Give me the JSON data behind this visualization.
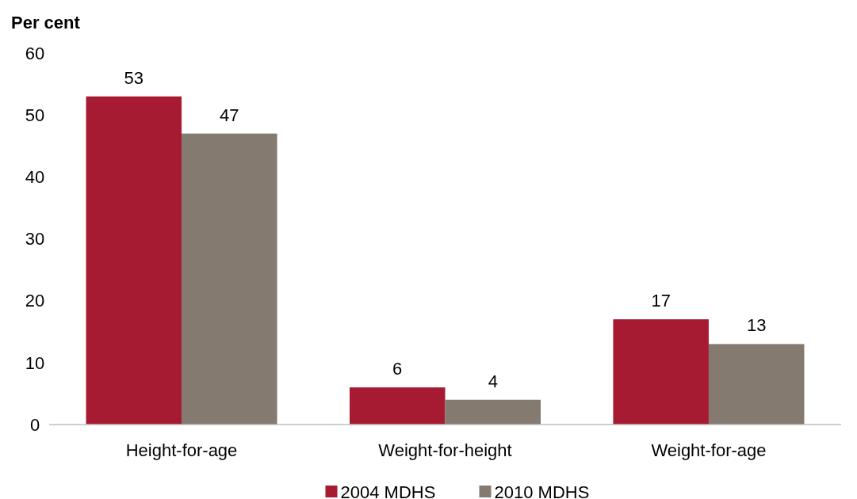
{
  "chart_data": {
    "type": "bar",
    "ylabel": "Per cent",
    "categories": [
      "Height-for-age",
      "Weight-for-height",
      "Weight-for-age"
    ],
    "series": [
      {
        "name": "2004 MDHS",
        "color": "#a61b31",
        "values": [
          53,
          6,
          17
        ]
      },
      {
        "name": "2010 MDHS",
        "color": "#857a6f",
        "values": [
          47,
          4,
          13
        ]
      }
    ],
    "ylim": [
      0,
      60
    ],
    "yticks": [
      0,
      10,
      20,
      30,
      40,
      50,
      60
    ],
    "grid": false,
    "legend": "bottom",
    "data_labels": true
  }
}
